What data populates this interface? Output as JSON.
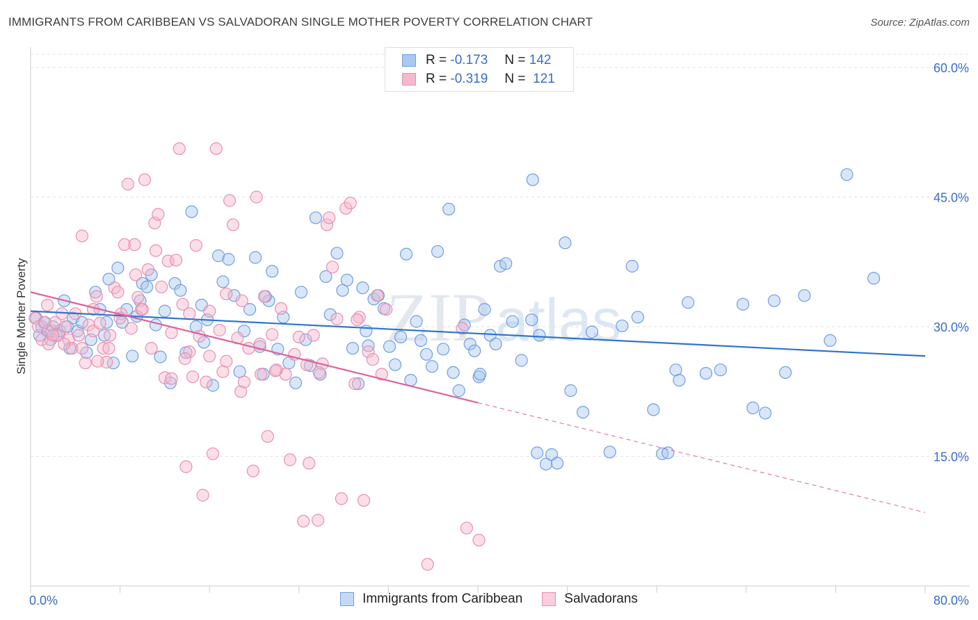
{
  "title": "IMMIGRANTS FROM CARIBBEAN VS SALVADORAN SINGLE MOTHER POVERTY CORRELATION CHART",
  "source": "Source: ZipAtlas.com",
  "watermark": "ZIPatlas",
  "legend": {
    "rows": [
      {
        "r_label": "R =",
        "r_value": "-0.173",
        "n_label": "N =",
        "n_value": "142"
      },
      {
        "r_label": "R =",
        "r_value": "-0.319",
        "n_label": "N =",
        "n_value": "121"
      }
    ]
  },
  "colors": {
    "blue_fill": "#a9c8f0",
    "blue_stroke": "#6f9fe0",
    "blue_line": "#2f74d0",
    "pink_fill": "#f5b9cd",
    "pink_stroke": "#ea8fb0",
    "pink_line": "#e0609a",
    "tick_label": "#3a6cc8",
    "grid": "#e2e2e2"
  },
  "chart_data": {
    "type": "scatter",
    "ylabel": "Single Mother Poverty",
    "x_axis": {
      "min": 0,
      "max": 80,
      "unit": "%",
      "labels": [
        "0.0%",
        "80.0%"
      ]
    },
    "y_axis": {
      "min": 0,
      "max": 60,
      "unit": "%",
      "ticks": [
        15,
        30,
        45,
        60
      ],
      "labels": [
        "15.0%",
        "30.0%",
        "45.0%",
        "60.0%"
      ]
    },
    "grid": "horizontal dashed",
    "legend_position": "top-center",
    "series": [
      {
        "name": "Immigrants from Caribbean",
        "color": "blue",
        "trend": {
          "x0": 0,
          "y0": 31.8,
          "x1": 80,
          "y1": 26.6
        },
        "points": [
          [
            0.5,
            31
          ],
          [
            0.8,
            29
          ],
          [
            1,
            30
          ],
          [
            1.2,
            30.5
          ],
          [
            1.5,
            29.5
          ],
          [
            1.8,
            28.5
          ],
          [
            2,
            30
          ],
          [
            2.3,
            29
          ],
          [
            2.6,
            29.5
          ],
          [
            3,
            33
          ],
          [
            3.3,
            30
          ],
          [
            3.5,
            27.5
          ],
          [
            3.8,
            31
          ],
          [
            4.2,
            29.5
          ],
          [
            4.6,
            30.5
          ],
          [
            5,
            27
          ],
          [
            5.4,
            28.5
          ],
          [
            5.8,
            34
          ],
          [
            6.2,
            32
          ],
          [
            6.6,
            29
          ],
          [
            7,
            35.5
          ],
          [
            7.4,
            25.8
          ],
          [
            7.8,
            36.8
          ],
          [
            8.2,
            30.5
          ],
          [
            8.6,
            32
          ],
          [
            9.1,
            26.6
          ],
          [
            9.5,
            31.2
          ],
          [
            10,
            35
          ],
          [
            10.4,
            34.6
          ],
          [
            10.8,
            36
          ],
          [
            11.2,
            30.2
          ],
          [
            11.6,
            26.5
          ],
          [
            12,
            31.8
          ],
          [
            12.5,
            23.5
          ],
          [
            12.9,
            35
          ],
          [
            13.4,
            34.2
          ],
          [
            13.9,
            27
          ],
          [
            14.4,
            43.3
          ],
          [
            14.8,
            30
          ],
          [
            15.3,
            32.5
          ],
          [
            15.8,
            30.8
          ],
          [
            16.3,
            23.2
          ],
          [
            16.8,
            38.2
          ],
          [
            17.2,
            35.2
          ],
          [
            17.7,
            37.8
          ],
          [
            18.2,
            33.6
          ],
          [
            18.7,
            24.8
          ],
          [
            19.1,
            29.5
          ],
          [
            19.6,
            32
          ],
          [
            20.1,
            38
          ],
          [
            20.5,
            27.7
          ],
          [
            20.8,
            24.5
          ],
          [
            21.3,
            33
          ],
          [
            21.6,
            36.4
          ],
          [
            22.1,
            27.4
          ],
          [
            22.6,
            31.1
          ],
          [
            23.1,
            25.8
          ],
          [
            23.7,
            23.5
          ],
          [
            24.2,
            34
          ],
          [
            24.6,
            28.5
          ],
          [
            25,
            25.5
          ],
          [
            25.5,
            42.6
          ],
          [
            25.9,
            24.5
          ],
          [
            26.4,
            35.8
          ],
          [
            26.8,
            31.4
          ],
          [
            27.4,
            38.5
          ],
          [
            27.9,
            34.2
          ],
          [
            28.3,
            35.4
          ],
          [
            28.8,
            27.5
          ],
          [
            29.3,
            23.4
          ],
          [
            29.7,
            34.5
          ],
          [
            30.2,
            27.8
          ],
          [
            30.7,
            33.2
          ],
          [
            31.1,
            33.6
          ],
          [
            31.6,
            32.1
          ],
          [
            32.1,
            27.7
          ],
          [
            32.6,
            25.6
          ],
          [
            33.1,
            28.8
          ],
          [
            33.6,
            38.4
          ],
          [
            34,
            23.8
          ],
          [
            34.5,
            30.6
          ],
          [
            34.9,
            28.4
          ],
          [
            35.4,
            26.8
          ],
          [
            35.9,
            25.4
          ],
          [
            36.4,
            38.7
          ],
          [
            36.9,
            27.4
          ],
          [
            37.4,
            43.6
          ],
          [
            37.8,
            24.7
          ],
          [
            38.3,
            22.6
          ],
          [
            38.8,
            30.2
          ],
          [
            39.3,
            28
          ],
          [
            39.7,
            27.2
          ],
          [
            40.1,
            24.2
          ],
          [
            40.6,
            32
          ],
          [
            41.1,
            29
          ],
          [
            41.6,
            28
          ],
          [
            42,
            37
          ],
          [
            42.5,
            37.3
          ],
          [
            43.1,
            30.6
          ],
          [
            43.9,
            26.1
          ],
          [
            44.8,
            30.8
          ],
          [
            45.3,
            15.4
          ],
          [
            46.1,
            14.1
          ],
          [
            46.6,
            15.2
          ],
          [
            47.1,
            14.2
          ],
          [
            48.3,
            22.6
          ],
          [
            49.4,
            20.1
          ],
          [
            50.2,
            29.4
          ],
          [
            51.8,
            15.5
          ],
          [
            52.9,
            30.1
          ],
          [
            53.8,
            37
          ],
          [
            54.3,
            31.1
          ],
          [
            55.7,
            20.4
          ],
          [
            56.5,
            15.3
          ],
          [
            57,
            15.4
          ],
          [
            57.7,
            25
          ],
          [
            58,
            23.8
          ],
          [
            58.8,
            32.8
          ],
          [
            60.4,
            24.6
          ],
          [
            61.7,
            25
          ],
          [
            63.7,
            32.6
          ],
          [
            64.6,
            20.6
          ],
          [
            65.7,
            20
          ],
          [
            67.5,
            24.7
          ],
          [
            69.2,
            33.6
          ],
          [
            71.5,
            28.4
          ],
          [
            73,
            47.6
          ],
          [
            75.4,
            35.6
          ],
          [
            66.5,
            33
          ],
          [
            47.8,
            39.7
          ],
          [
            45.5,
            29
          ],
          [
            40.2,
            24.5
          ],
          [
            30,
            29.5
          ],
          [
            15.5,
            28.2
          ],
          [
            6.8,
            30.5
          ],
          [
            9.8,
            33
          ],
          [
            21,
            33.5
          ],
          [
            44.9,
            47
          ]
        ]
      },
      {
        "name": "Salvadorans",
        "color": "pink",
        "trend": {
          "x0": 0,
          "y0": 34,
          "x1": 40,
          "y1": 21.2,
          "dash_x1": 80,
          "dash_y1": 8.5
        },
        "points": [
          [
            0.4,
            31
          ],
          [
            0.7,
            30
          ],
          [
            1,
            28.5
          ],
          [
            1.3,
            30.5
          ],
          [
            1.6,
            28
          ],
          [
            1.9,
            29.5
          ],
          [
            2.2,
            30.5
          ],
          [
            2.5,
            29
          ],
          [
            2.8,
            31.5
          ],
          [
            3.1,
            30
          ],
          [
            3.4,
            28.5
          ],
          [
            3.7,
            27.5
          ],
          [
            4,
            31.5
          ],
          [
            4.3,
            29
          ],
          [
            4.6,
            27.5
          ],
          [
            4.9,
            25.8
          ],
          [
            5.2,
            30.2
          ],
          [
            5.6,
            29.5
          ],
          [
            5.9,
            33.5
          ],
          [
            6.2,
            30.4
          ],
          [
            6.5,
            27.5
          ],
          [
            6.8,
            25.9
          ],
          [
            7.1,
            29
          ],
          [
            7.5,
            34.5
          ],
          [
            7.8,
            34
          ],
          [
            8.1,
            31.5
          ],
          [
            8.4,
            39.5
          ],
          [
            8.7,
            46.5
          ],
          [
            9,
            29.8
          ],
          [
            9.3,
            39.5
          ],
          [
            9.6,
            33.4
          ],
          [
            9.9,
            32
          ],
          [
            10.2,
            47
          ],
          [
            10.5,
            36.6
          ],
          [
            10.8,
            27.5
          ],
          [
            11.1,
            42
          ],
          [
            11.4,
            43
          ],
          [
            11.7,
            34.6
          ],
          [
            12,
            24.1
          ],
          [
            12.3,
            37.6
          ],
          [
            12.6,
            29.3
          ],
          [
            13,
            37.7
          ],
          [
            13.3,
            50.6
          ],
          [
            13.6,
            32.6
          ],
          [
            13.9,
            13.8
          ],
          [
            14.2,
            27.1
          ],
          [
            14.5,
            24.2
          ],
          [
            14.8,
            39.4
          ],
          [
            15.1,
            28.9
          ],
          [
            15.4,
            10.5
          ],
          [
            15.7,
            23.6
          ],
          [
            16,
            31.8
          ],
          [
            16.3,
            15.3
          ],
          [
            16.6,
            50.6
          ],
          [
            16.9,
            29.6
          ],
          [
            17.2,
            24.8
          ],
          [
            17.5,
            33.8
          ],
          [
            17.8,
            44.6
          ],
          [
            18.1,
            41.8
          ],
          [
            18.5,
            28.7
          ],
          [
            18.8,
            22.5
          ],
          [
            19.1,
            23.6
          ],
          [
            19.5,
            27.5
          ],
          [
            19.9,
            13.3
          ],
          [
            20.2,
            45
          ],
          [
            20.6,
            24.5
          ],
          [
            20.9,
            33.5
          ],
          [
            21.2,
            17.3
          ],
          [
            21.6,
            29.1
          ],
          [
            22,
            25
          ],
          [
            22.4,
            32.1
          ],
          [
            22.8,
            24.5
          ],
          [
            23.2,
            14.6
          ],
          [
            23.6,
            26.8
          ],
          [
            24,
            28.8
          ],
          [
            24.4,
            7.5
          ],
          [
            24.9,
            14.2
          ],
          [
            25.3,
            29
          ],
          [
            25.7,
            7.6
          ],
          [
            26.1,
            25.7
          ],
          [
            26.5,
            41.8
          ],
          [
            27,
            36.9
          ],
          [
            27.4,
            30.9
          ],
          [
            27.8,
            10.1
          ],
          [
            28.2,
            43.7
          ],
          [
            28.6,
            44.3
          ],
          [
            29,
            23.4
          ],
          [
            29.4,
            31.1
          ],
          [
            29.8,
            9.9
          ],
          [
            30.2,
            27.1
          ],
          [
            30.6,
            26.2
          ],
          [
            31,
            33.6
          ],
          [
            31.4,
            24.5
          ],
          [
            5.6,
            32
          ],
          [
            8,
            31
          ],
          [
            9.4,
            36
          ],
          [
            12.6,
            24
          ],
          [
            17.5,
            26
          ],
          [
            3,
            28
          ],
          [
            10,
            32
          ],
          [
            11.2,
            38.8
          ],
          [
            13.8,
            26.3
          ],
          [
            18.9,
            33
          ],
          [
            21.9,
            24.9
          ],
          [
            24.7,
            25.6
          ],
          [
            25.8,
            24.7
          ],
          [
            26.7,
            42.6
          ],
          [
            29.2,
            30.8
          ],
          [
            14.2,
            31.5
          ],
          [
            4.6,
            40.5
          ],
          [
            6,
            26
          ],
          [
            2,
            29
          ],
          [
            35.5,
            2.5
          ],
          [
            39,
            6.7
          ],
          [
            40.1,
            5.3
          ],
          [
            38.6,
            29.8
          ],
          [
            20.5,
            28
          ],
          [
            16,
            26.6
          ],
          [
            7,
            27.5
          ],
          [
            1.5,
            32.5
          ],
          [
            31.8,
            32
          ]
        ]
      }
    ]
  },
  "bottom_legend": [
    "Immigrants from Caribbean",
    "Salvadorans"
  ]
}
